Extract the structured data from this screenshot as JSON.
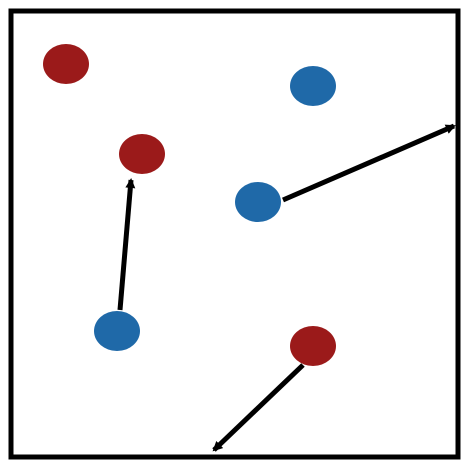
{
  "colors": {
    "background": "#ffffff",
    "frame": "#000000",
    "red_particle": "#9b1a1a",
    "blue_particle": "#1f69a8",
    "arrow": "#000000"
  },
  "particles": [
    {
      "id": "red-1",
      "kind": "red"
    },
    {
      "id": "blue-1",
      "kind": "blue"
    },
    {
      "id": "red-2",
      "kind": "red"
    },
    {
      "id": "blue-2",
      "kind": "blue"
    },
    {
      "id": "blue-3",
      "kind": "blue"
    },
    {
      "id": "red-3",
      "kind": "red"
    }
  ],
  "arrows": [
    {
      "id": "arrow-blue-3-to-red-2",
      "from": "blue-3",
      "direction": "up"
    },
    {
      "id": "arrow-blue-2-to-right-edge",
      "from": "blue-2",
      "direction": "up-right"
    },
    {
      "id": "arrow-red-3-to-bottom-edge",
      "from": "red-3",
      "direction": "down-left"
    }
  ]
}
